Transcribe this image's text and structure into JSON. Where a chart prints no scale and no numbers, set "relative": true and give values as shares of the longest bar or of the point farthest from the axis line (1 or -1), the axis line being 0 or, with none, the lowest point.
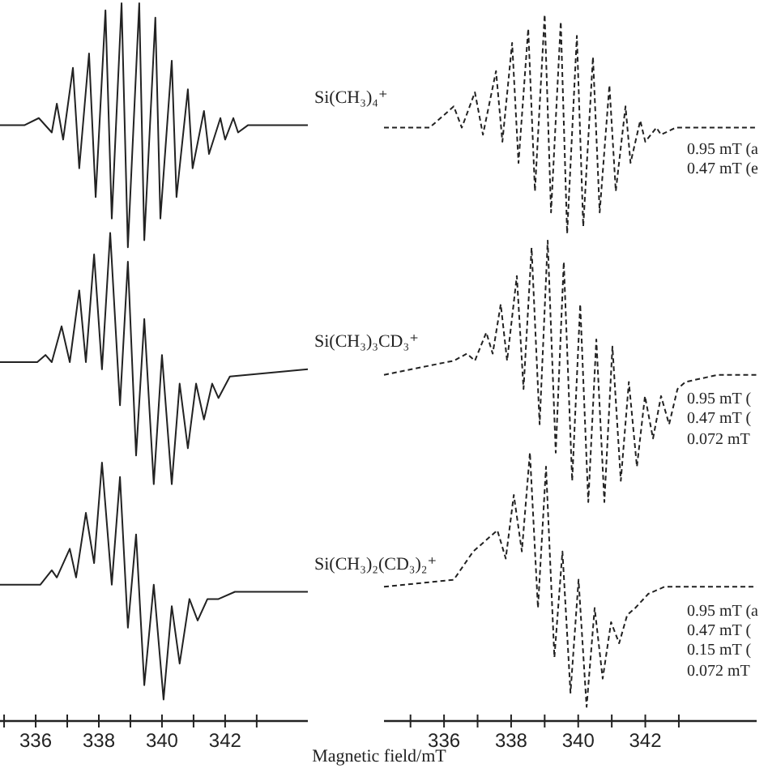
{
  "chart_data": [
    {
      "type": "line",
      "relative": true,
      "line_style": "solid",
      "xlim": [
        334.87,
        344.62
      ],
      "xlabel": "Magnetic field/mT",
      "xticks": [
        {
          "value": 335,
          "label": null
        },
        336,
        {
          "value": 337,
          "label": null
        },
        338,
        {
          "value": 339,
          "label": null
        },
        340,
        {
          "value": 341,
          "label": null
        },
        342,
        {
          "value": 343,
          "label": null
        }
      ],
      "series": [
        {
          "name": "Si(CH₃)₄⁺",
          "color": "#222222",
          "x": [
            334.87,
            335.64,
            336.1,
            336.51,
            336.67,
            336.87,
            337.18,
            337.38,
            337.69,
            337.9,
            338.21,
            338.41,
            338.72,
            338.92,
            339.28,
            339.44,
            339.79,
            339.95,
            340.31,
            340.46,
            340.82,
            340.97,
            341.33,
            341.49,
            341.85,
            342.0,
            342.26,
            342.41,
            342.72,
            344.62
          ],
          "values": [
            0.83,
            0.83,
            0.84,
            0.82,
            0.86,
            0.81,
            0.91,
            0.77,
            0.93,
            0.73,
            0.99,
            0.7,
            1,
            0.66,
            1,
            0.67,
            0.98,
            0.7,
            0.92,
            0.73,
            0.88,
            0.77,
            0.85,
            0.79,
            0.84,
            0.81,
            0.84,
            0.82,
            0.83,
            0.83
          ]
        },
        {
          "name": "Si(CH₃)₃CD₃⁺",
          "color": "#222222",
          "x": [
            334.87,
            336.05,
            336.31,
            336.51,
            336.82,
            337.08,
            337.38,
            337.59,
            337.85,
            338.1,
            338.36,
            338.67,
            338.92,
            339.18,
            339.44,
            339.74,
            340.0,
            340.31,
            340.56,
            340.82,
            341.08,
            341.33,
            341.59,
            341.79,
            342.15,
            344.62
          ],
          "values": [
            0.5,
            0.5,
            0.51,
            0.5,
            0.55,
            0.5,
            0.6,
            0.5,
            0.65,
            0.49,
            0.68,
            0.44,
            0.64,
            0.37,
            0.56,
            0.33,
            0.51,
            0.33,
            0.47,
            0.38,
            0.47,
            0.42,
            0.47,
            0.45,
            0.48,
            0.49
          ]
        },
        {
          "name": "Si(CH₃)₂(CD₃)₂⁺",
          "color": "#222222",
          "x": [
            334.87,
            336.15,
            336.51,
            336.67,
            337.08,
            337.28,
            337.59,
            337.85,
            338.1,
            338.41,
            338.67,
            338.92,
            339.18,
            339.44,
            339.74,
            340.05,
            340.31,
            340.56,
            340.87,
            341.13,
            341.44,
            341.79,
            342.31,
            344.62
          ],
          "values": [
            0.19,
            0.19,
            0.21,
            0.2,
            0.24,
            0.2,
            0.29,
            0.22,
            0.36,
            0.19,
            0.34,
            0.13,
            0.26,
            0.05,
            0.19,
            0.03,
            0.16,
            0.08,
            0.17,
            0.14,
            0.17,
            0.17,
            0.18,
            0.18
          ]
        }
      ]
    },
    {
      "type": "line",
      "relative": true,
      "line_style": "dashed",
      "xlim": [
        334.21,
        345.32
      ],
      "annotations": [
        "0.95 mT (a",
        "0.47 mT (e",
        "0.95 mT (",
        "0.47 mT (",
        "0.072 mT",
        "0.95 mT (a",
        "0.47 mT (",
        "0.15 mT (",
        "0.072 mT"
      ],
      "xticks": [
        {
          "value": 335,
          "label": null
        },
        336,
        {
          "value": 337,
          "label": null
        },
        338,
        {
          "value": 339,
          "label": null
        },
        340,
        {
          "value": 341,
          "label": null
        },
        342,
        {
          "value": 343,
          "label": null
        }
      ],
      "series": [
        {
          "color": "#222222",
          "x": [
            334.21,
            335.57,
            336.29,
            336.53,
            336.92,
            337.16,
            337.55,
            337.74,
            338.03,
            338.22,
            338.51,
            338.71,
            339.0,
            339.19,
            339.48,
            339.67,
            339.96,
            340.15,
            340.44,
            340.64,
            340.93,
            341.12,
            341.41,
            341.56,
            341.85,
            342.0,
            342.33,
            342.47,
            342.91,
            345.32
          ],
          "values": [
            0.84,
            0.84,
            0.87,
            0.84,
            0.89,
            0.83,
            0.92,
            0.82,
            0.96,
            0.79,
            0.98,
            0.75,
            1,
            0.72,
            0.99,
            0.69,
            0.97,
            0.7,
            0.94,
            0.72,
            0.9,
            0.75,
            0.87,
            0.79,
            0.85,
            0.82,
            0.84,
            0.83,
            0.84,
            0.84
          ]
        },
        {
          "color": "#222222",
          "x": [
            334.21,
            336.29,
            336.68,
            336.92,
            337.26,
            337.45,
            337.69,
            337.88,
            338.17,
            338.37,
            338.61,
            338.85,
            339.09,
            339.33,
            339.57,
            339.82,
            340.06,
            340.3,
            340.54,
            340.78,
            341.02,
            341.27,
            341.51,
            341.75,
            341.99,
            342.23,
            342.47,
            342.71,
            342.96,
            343.2,
            344.16,
            345.32
          ],
          "values": [
            0.49,
            0.51,
            0.52,
            0.51,
            0.55,
            0.52,
            0.59,
            0.51,
            0.63,
            0.47,
            0.67,
            0.42,
            0.68,
            0.38,
            0.65,
            0.34,
            0.59,
            0.31,
            0.54,
            0.31,
            0.53,
            0.34,
            0.48,
            0.36,
            0.46,
            0.4,
            0.46,
            0.42,
            0.47,
            0.48,
            0.49,
            0.49
          ]
        },
        {
          "color": "#222222",
          "x": [
            334.21,
            336.29,
            336.87,
            337.59,
            337.84,
            338.08,
            338.32,
            338.56,
            338.8,
            339.04,
            339.29,
            339.53,
            339.77,
            340.01,
            340.25,
            340.49,
            340.73,
            340.98,
            341.22,
            341.46,
            341.7,
            342.09,
            342.57,
            345.32
          ],
          "values": [
            0.19,
            0.2,
            0.24,
            0.27,
            0.23,
            0.32,
            0.24,
            0.38,
            0.16,
            0.36,
            0.09,
            0.24,
            0.04,
            0.2,
            0.02,
            0.16,
            0.06,
            0.14,
            0.11,
            0.15,
            0.16,
            0.18,
            0.19,
            0.19
          ]
        }
      ]
    }
  ]
}
